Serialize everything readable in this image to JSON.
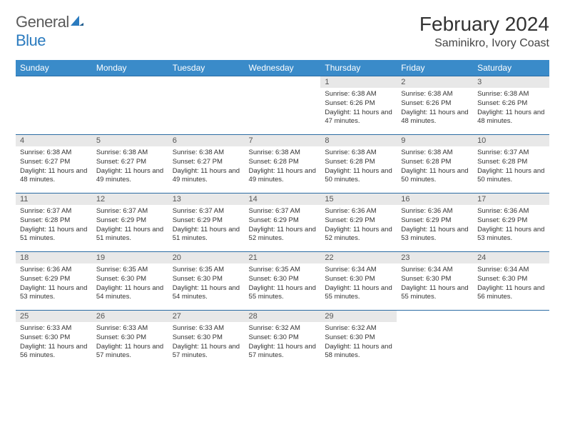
{
  "logo": {
    "text1": "General",
    "text2": "Blue"
  },
  "title": "February 2024",
  "location": "Saminikro, Ivory Coast",
  "colors": {
    "header_bg": "#3a8bc9",
    "header_text": "#ffffff",
    "row_border": "#2b6ca3",
    "daynum_bg": "#e8e8e8",
    "daynum_text": "#555555",
    "body_text": "#333333",
    "logo_gray": "#5a5a5a",
    "logo_blue": "#2b7bbf"
  },
  "weekdays": [
    "Sunday",
    "Monday",
    "Tuesday",
    "Wednesday",
    "Thursday",
    "Friday",
    "Saturday"
  ],
  "weeks": [
    [
      {
        "n": "",
        "sr": "",
        "ss": "",
        "dl": ""
      },
      {
        "n": "",
        "sr": "",
        "ss": "",
        "dl": ""
      },
      {
        "n": "",
        "sr": "",
        "ss": "",
        "dl": ""
      },
      {
        "n": "",
        "sr": "",
        "ss": "",
        "dl": ""
      },
      {
        "n": "1",
        "sr": "Sunrise: 6:38 AM",
        "ss": "Sunset: 6:26 PM",
        "dl": "Daylight: 11 hours and 47 minutes."
      },
      {
        "n": "2",
        "sr": "Sunrise: 6:38 AM",
        "ss": "Sunset: 6:26 PM",
        "dl": "Daylight: 11 hours and 48 minutes."
      },
      {
        "n": "3",
        "sr": "Sunrise: 6:38 AM",
        "ss": "Sunset: 6:26 PM",
        "dl": "Daylight: 11 hours and 48 minutes."
      }
    ],
    [
      {
        "n": "4",
        "sr": "Sunrise: 6:38 AM",
        "ss": "Sunset: 6:27 PM",
        "dl": "Daylight: 11 hours and 48 minutes."
      },
      {
        "n": "5",
        "sr": "Sunrise: 6:38 AM",
        "ss": "Sunset: 6:27 PM",
        "dl": "Daylight: 11 hours and 49 minutes."
      },
      {
        "n": "6",
        "sr": "Sunrise: 6:38 AM",
        "ss": "Sunset: 6:27 PM",
        "dl": "Daylight: 11 hours and 49 minutes."
      },
      {
        "n": "7",
        "sr": "Sunrise: 6:38 AM",
        "ss": "Sunset: 6:28 PM",
        "dl": "Daylight: 11 hours and 49 minutes."
      },
      {
        "n": "8",
        "sr": "Sunrise: 6:38 AM",
        "ss": "Sunset: 6:28 PM",
        "dl": "Daylight: 11 hours and 50 minutes."
      },
      {
        "n": "9",
        "sr": "Sunrise: 6:38 AM",
        "ss": "Sunset: 6:28 PM",
        "dl": "Daylight: 11 hours and 50 minutes."
      },
      {
        "n": "10",
        "sr": "Sunrise: 6:37 AM",
        "ss": "Sunset: 6:28 PM",
        "dl": "Daylight: 11 hours and 50 minutes."
      }
    ],
    [
      {
        "n": "11",
        "sr": "Sunrise: 6:37 AM",
        "ss": "Sunset: 6:28 PM",
        "dl": "Daylight: 11 hours and 51 minutes."
      },
      {
        "n": "12",
        "sr": "Sunrise: 6:37 AM",
        "ss": "Sunset: 6:29 PM",
        "dl": "Daylight: 11 hours and 51 minutes."
      },
      {
        "n": "13",
        "sr": "Sunrise: 6:37 AM",
        "ss": "Sunset: 6:29 PM",
        "dl": "Daylight: 11 hours and 51 minutes."
      },
      {
        "n": "14",
        "sr": "Sunrise: 6:37 AM",
        "ss": "Sunset: 6:29 PM",
        "dl": "Daylight: 11 hours and 52 minutes."
      },
      {
        "n": "15",
        "sr": "Sunrise: 6:36 AM",
        "ss": "Sunset: 6:29 PM",
        "dl": "Daylight: 11 hours and 52 minutes."
      },
      {
        "n": "16",
        "sr": "Sunrise: 6:36 AM",
        "ss": "Sunset: 6:29 PM",
        "dl": "Daylight: 11 hours and 53 minutes."
      },
      {
        "n": "17",
        "sr": "Sunrise: 6:36 AM",
        "ss": "Sunset: 6:29 PM",
        "dl": "Daylight: 11 hours and 53 minutes."
      }
    ],
    [
      {
        "n": "18",
        "sr": "Sunrise: 6:36 AM",
        "ss": "Sunset: 6:29 PM",
        "dl": "Daylight: 11 hours and 53 minutes."
      },
      {
        "n": "19",
        "sr": "Sunrise: 6:35 AM",
        "ss": "Sunset: 6:30 PM",
        "dl": "Daylight: 11 hours and 54 minutes."
      },
      {
        "n": "20",
        "sr": "Sunrise: 6:35 AM",
        "ss": "Sunset: 6:30 PM",
        "dl": "Daylight: 11 hours and 54 minutes."
      },
      {
        "n": "21",
        "sr": "Sunrise: 6:35 AM",
        "ss": "Sunset: 6:30 PM",
        "dl": "Daylight: 11 hours and 55 minutes."
      },
      {
        "n": "22",
        "sr": "Sunrise: 6:34 AM",
        "ss": "Sunset: 6:30 PM",
        "dl": "Daylight: 11 hours and 55 minutes."
      },
      {
        "n": "23",
        "sr": "Sunrise: 6:34 AM",
        "ss": "Sunset: 6:30 PM",
        "dl": "Daylight: 11 hours and 55 minutes."
      },
      {
        "n": "24",
        "sr": "Sunrise: 6:34 AM",
        "ss": "Sunset: 6:30 PM",
        "dl": "Daylight: 11 hours and 56 minutes."
      }
    ],
    [
      {
        "n": "25",
        "sr": "Sunrise: 6:33 AM",
        "ss": "Sunset: 6:30 PM",
        "dl": "Daylight: 11 hours and 56 minutes."
      },
      {
        "n": "26",
        "sr": "Sunrise: 6:33 AM",
        "ss": "Sunset: 6:30 PM",
        "dl": "Daylight: 11 hours and 57 minutes."
      },
      {
        "n": "27",
        "sr": "Sunrise: 6:33 AM",
        "ss": "Sunset: 6:30 PM",
        "dl": "Daylight: 11 hours and 57 minutes."
      },
      {
        "n": "28",
        "sr": "Sunrise: 6:32 AM",
        "ss": "Sunset: 6:30 PM",
        "dl": "Daylight: 11 hours and 57 minutes."
      },
      {
        "n": "29",
        "sr": "Sunrise: 6:32 AM",
        "ss": "Sunset: 6:30 PM",
        "dl": "Daylight: 11 hours and 58 minutes."
      },
      {
        "n": "",
        "sr": "",
        "ss": "",
        "dl": ""
      },
      {
        "n": "",
        "sr": "",
        "ss": "",
        "dl": ""
      }
    ]
  ]
}
